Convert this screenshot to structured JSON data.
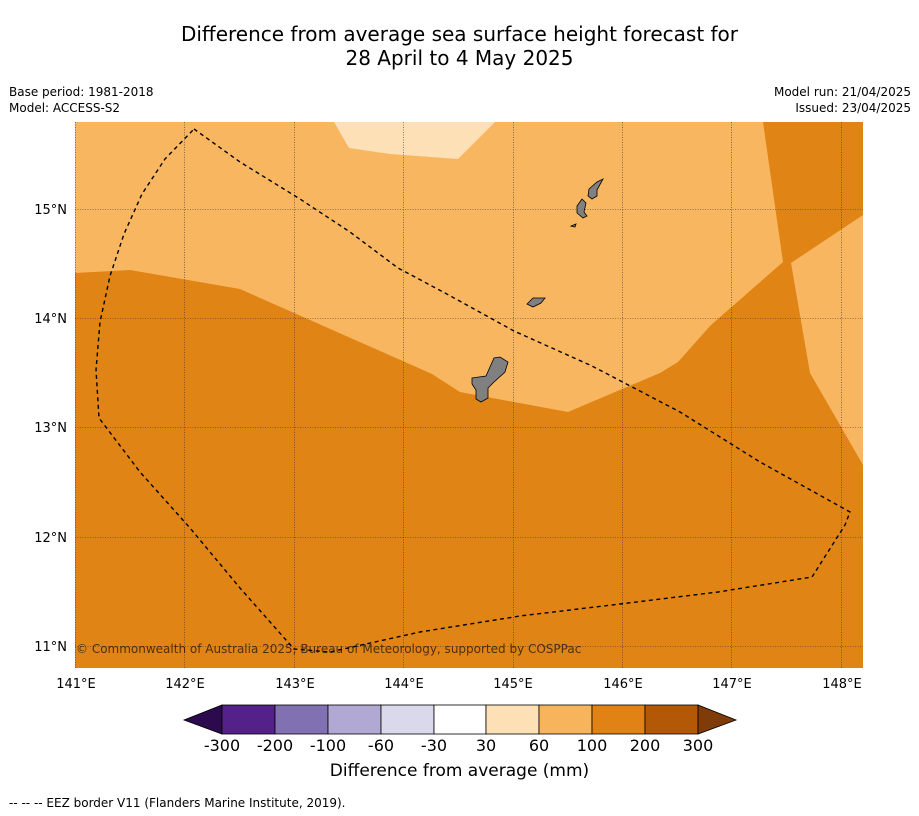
{
  "title_line1": "Difference from average sea surface height forecast for",
  "title_line2": "28 April to 4 May 2025",
  "info_left": {
    "base_period": "Base period: 1981-2018",
    "model": "Model: ACCESS-S2"
  },
  "info_right": {
    "model_run": "Model run: 21/04/2025",
    "issued": "Issued: 23/04/2025"
  },
  "copyright": "© Commonwealth of Australia 2025, Bureau of Meteorology, supported by COSPPac",
  "lon_labels": [
    "141°E",
    "142°E",
    "143°E",
    "144°E",
    "145°E",
    "146°E",
    "147°E",
    "148°E"
  ],
  "lat_labels": [
    "15°N",
    "14°N",
    "13°N",
    "12°N",
    "11°N"
  ],
  "colorbar": {
    "title": "Difference from average (mm)",
    "ticks": [
      "-300",
      "-200",
      "-100",
      "-60",
      "-30",
      "30",
      "60",
      "100",
      "200",
      "300"
    ],
    "colors": [
      "#2d0a4e",
      "#54208a",
      "#8171b2",
      "#b1a9d3",
      "#d9d9eb",
      "#ffffff",
      "#fde0b6",
      "#f8b45d",
      "#e08214",
      "#b35806",
      "#7f3b08"
    ]
  },
  "map_colors": {
    "band_60_100": "#f9b660",
    "band_100_200": "#e08416",
    "band_30_60": "#fde0b6",
    "land": "#808080"
  },
  "legend_note": "-- -- -- EEZ border V11 (Flanders Marine Institute, 2019)."
}
